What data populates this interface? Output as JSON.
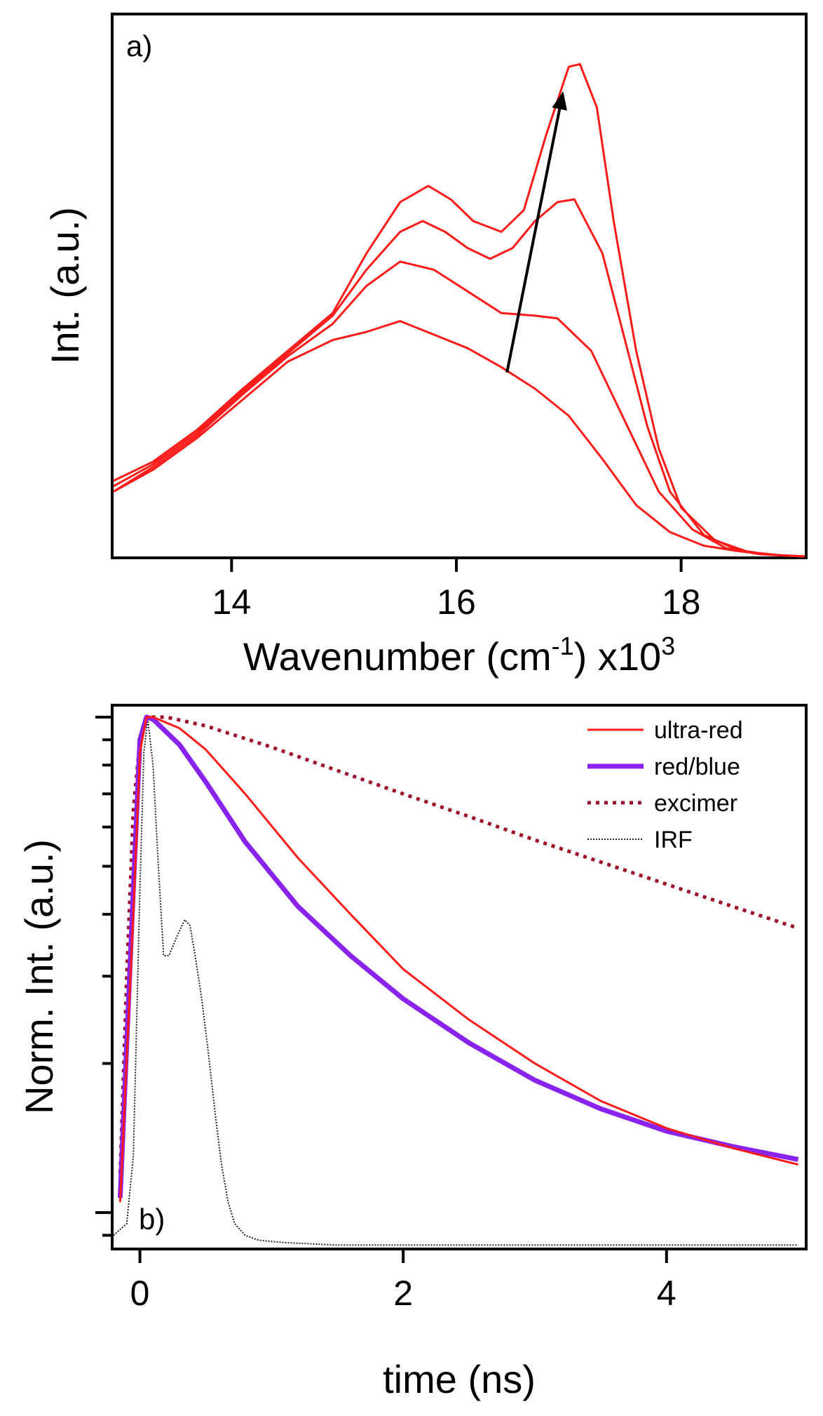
{
  "chart_data": [
    {
      "panel": "a)",
      "type": "line",
      "xlabel": "Wavenumber (cm",
      "xlabel_sup": "-1",
      "xlabel_after": ") x10",
      "xlabel_sup2": "3",
      "ylabel": "Int. (a.u.)",
      "xlim": [
        12.95,
        19.1
      ],
      "ylim": [
        0,
        1.0
      ],
      "xticks": [
        14,
        16,
        18
      ],
      "tick_labels": [
        "14",
        "16",
        "18"
      ],
      "y_ticks_shown": false,
      "grid": false,
      "legend": "none",
      "line_color": "#ff1a1a",
      "arrow": {
        "from": [
          16.45,
          0.34
        ],
        "to": [
          16.95,
          0.86
        ],
        "color": "#000000"
      },
      "series": [
        {
          "x": [
            12.95,
            13.3,
            13.7,
            14.1,
            14.5,
            14.9,
            15.2,
            15.5,
            15.8,
            16.1,
            16.4,
            16.7,
            17.0,
            17.3,
            17.6,
            17.9,
            18.2,
            18.5,
            18.8,
            19.1
          ],
          "y": [
            0.12,
            0.16,
            0.22,
            0.29,
            0.36,
            0.4,
            0.415,
            0.435,
            0.41,
            0.385,
            0.35,
            0.31,
            0.26,
            0.18,
            0.095,
            0.045,
            0.02,
            0.01,
            0.003,
            0.0
          ]
        },
        {
          "x": [
            12.95,
            13.3,
            13.7,
            14.1,
            14.5,
            14.9,
            15.2,
            15.5,
            15.8,
            16.1,
            16.4,
            16.7,
            16.9,
            17.2,
            17.5,
            17.8,
            18.1,
            18.4,
            18.7,
            19.1
          ],
          "y": [
            0.12,
            0.165,
            0.225,
            0.3,
            0.37,
            0.43,
            0.5,
            0.545,
            0.53,
            0.49,
            0.45,
            0.445,
            0.44,
            0.38,
            0.25,
            0.12,
            0.05,
            0.015,
            0.004,
            0.0
          ]
        },
        {
          "x": [
            12.95,
            13.3,
            13.7,
            14.1,
            14.5,
            14.9,
            15.2,
            15.5,
            15.7,
            15.9,
            16.1,
            16.3,
            16.5,
            16.7,
            16.9,
            17.05,
            17.3,
            17.5,
            17.7,
            17.9,
            18.2,
            18.5,
            18.8,
            19.1
          ],
          "y": [
            0.13,
            0.17,
            0.23,
            0.305,
            0.375,
            0.445,
            0.53,
            0.6,
            0.62,
            0.6,
            0.57,
            0.55,
            0.57,
            0.62,
            0.655,
            0.66,
            0.56,
            0.4,
            0.24,
            0.12,
            0.04,
            0.012,
            0.003,
            0.0
          ]
        },
        {
          "x": [
            12.95,
            13.3,
            13.7,
            14.1,
            14.5,
            14.9,
            15.2,
            15.5,
            15.75,
            15.95,
            16.15,
            16.4,
            16.6,
            16.8,
            17.0,
            17.1,
            17.25,
            17.4,
            17.6,
            17.8,
            18.0,
            18.3,
            18.6,
            18.9,
            19.1
          ],
          "y": [
            0.14,
            0.175,
            0.235,
            0.31,
            0.38,
            0.45,
            0.56,
            0.655,
            0.685,
            0.66,
            0.62,
            0.6,
            0.64,
            0.78,
            0.905,
            0.91,
            0.83,
            0.62,
            0.38,
            0.2,
            0.09,
            0.03,
            0.008,
            0.002,
            0.0
          ]
        }
      ]
    },
    {
      "panel": "b)",
      "type": "line",
      "xlabel": "time (ns)",
      "ylabel": "Norm. Int. (a.u.)",
      "xlim": [
        -0.2,
        5.05
      ],
      "ylim": [
        0.085,
        1.05
      ],
      "yscale": "log",
      "xticks": [
        0,
        2,
        4
      ],
      "tick_labels": [
        "0",
        "2",
        "4"
      ],
      "y_tick_labels_shown": false,
      "grid": false,
      "legend": "top-right",
      "series": [
        {
          "name": "ultra-red",
          "color": "#ff1a1a",
          "style": "solid",
          "x": [
            -0.15,
            -0.05,
            0.0,
            0.05,
            0.1,
            0.3,
            0.5,
            0.8,
            1.2,
            1.6,
            2.0,
            2.5,
            3.0,
            3.5,
            4.0,
            4.5,
            5.0
          ],
          "y": [
            0.105,
            0.4,
            0.85,
            1.0,
            1.0,
            0.95,
            0.86,
            0.7,
            0.52,
            0.4,
            0.31,
            0.245,
            0.2,
            0.168,
            0.148,
            0.135,
            0.125
          ]
        },
        {
          "name": "red/blue",
          "color": "#8a22f0",
          "style": "solid-thick",
          "x": [
            -0.15,
            -0.05,
            0.0,
            0.05,
            0.1,
            0.3,
            0.5,
            0.8,
            1.2,
            1.6,
            2.0,
            2.5,
            3.0,
            3.5,
            4.0,
            4.5,
            5.0
          ],
          "y": [
            0.107,
            0.45,
            0.9,
            1.0,
            0.99,
            0.88,
            0.74,
            0.56,
            0.415,
            0.33,
            0.27,
            0.22,
            0.185,
            0.162,
            0.146,
            0.136,
            0.128
          ]
        },
        {
          "name": "excimer",
          "color": "#9e0f2a",
          "style": "dotted",
          "x": [
            -0.15,
            -0.1,
            -0.05,
            0.0,
            0.05,
            0.2,
            0.5,
            1.0,
            1.5,
            2.0,
            2.5,
            3.0,
            3.5,
            4.0,
            4.5,
            5.0
          ],
          "y": [
            0.12,
            0.3,
            0.65,
            0.9,
            1.0,
            1.0,
            0.96,
            0.87,
            0.78,
            0.7,
            0.63,
            0.565,
            0.51,
            0.46,
            0.415,
            0.375
          ]
        },
        {
          "name": "IRF",
          "color": "#222222",
          "style": "fine-dotted",
          "x": [
            -0.2,
            -0.1,
            -0.05,
            0.0,
            0.03,
            0.06,
            0.1,
            0.14,
            0.18,
            0.22,
            0.28,
            0.34,
            0.38,
            0.42,
            0.47,
            0.52,
            0.57,
            0.62,
            0.67,
            0.72,
            0.8,
            0.9,
            1.1,
            1.5,
            2.0,
            3.0,
            4.0,
            5.0
          ],
          "y": [
            0.09,
            0.095,
            0.13,
            0.45,
            0.85,
            0.99,
            0.8,
            0.5,
            0.33,
            0.33,
            0.36,
            0.39,
            0.38,
            0.33,
            0.27,
            0.21,
            0.16,
            0.125,
            0.105,
            0.095,
            0.09,
            0.088,
            0.087,
            0.086,
            0.086,
            0.086,
            0.086,
            0.086
          ]
        }
      ]
    }
  ]
}
